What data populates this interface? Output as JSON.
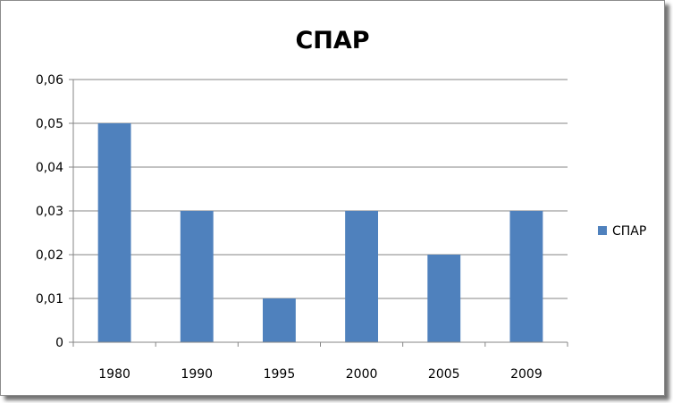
{
  "chart_data": {
    "type": "bar",
    "title": "СПАР",
    "categories": [
      "1980",
      "1990",
      "1995",
      "2000",
      "2005",
      "2009"
    ],
    "series": [
      {
        "name": "СПАР",
        "values": [
          0.05,
          0.03,
          0.01,
          0.03,
          0.02,
          0.03
        ],
        "color": "#4F81BD"
      }
    ],
    "ylim": [
      0,
      0.06
    ],
    "yticks": [
      0,
      0.01,
      0.02,
      0.03,
      0.04,
      0.05,
      0.06
    ],
    "ytick_labels": [
      "0",
      "0,01",
      "0,02",
      "0,03",
      "0,04",
      "0,05",
      "0,06"
    ],
    "xlabel": "",
    "ylabel": "",
    "grid": true,
    "legend_position": "right"
  }
}
